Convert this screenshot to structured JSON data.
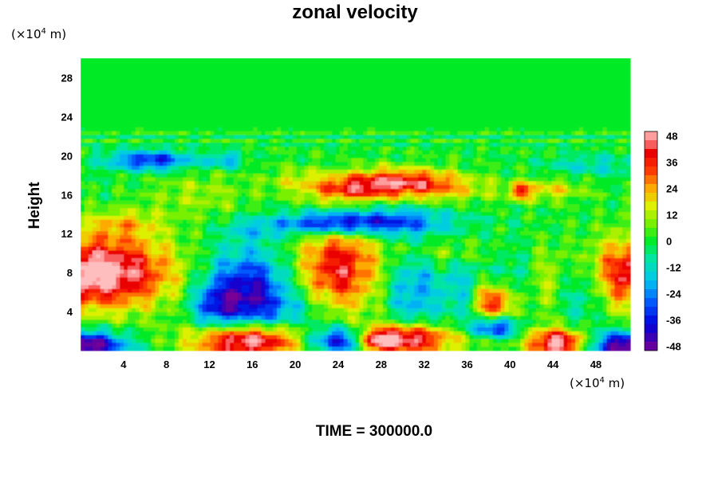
{
  "chart_data": {
    "type": "heatmap",
    "title": "zonal velocity",
    "ylabel": "Height",
    "y_scale_label": {
      "prefix": "(×10",
      "exp": "4",
      "suffix": " m)"
    },
    "x_scale_label": {
      "prefix": "(×10",
      "exp": "4",
      "suffix": " m)"
    },
    "footer": "TIME = 300000.0",
    "xlim": [
      0,
      51.2
    ],
    "ylim": [
      0,
      30
    ],
    "x_ticks": [
      "4",
      "8",
      "12",
      "16",
      "20",
      "24",
      "28",
      "32",
      "36",
      "40",
      "44",
      "48"
    ],
    "x_tick_values": [
      4,
      8,
      12,
      16,
      20,
      24,
      28,
      32,
      36,
      40,
      44,
      48
    ],
    "y_ticks": [
      "4",
      "8",
      "12",
      "16",
      "20",
      "24",
      "28"
    ],
    "y_tick_values": [
      4,
      8,
      12,
      16,
      20,
      24,
      28
    ],
    "colorbar": {
      "ticks": [
        "48",
        "36",
        "24",
        "12",
        "0",
        "-12",
        "-24",
        "-36",
        "-48"
      ],
      "tick_values": [
        48,
        36,
        24,
        12,
        0,
        -12,
        -24,
        -36,
        -48
      ],
      "range": [
        -50,
        50
      ],
      "levels": 25
    },
    "field_features": [
      {
        "x": 1.5,
        "y": 8.0,
        "sx": 5.0,
        "sy": 2.6,
        "v": 56
      },
      {
        "x": 51.5,
        "y": 8.0,
        "sx": 3.0,
        "sy": 2.6,
        "v": 42
      },
      {
        "x": 24.0,
        "y": 8.5,
        "sx": 2.8,
        "sy": 3.5,
        "v": 40
      },
      {
        "x": 38.5,
        "y": 5.0,
        "sx": 1.3,
        "sy": 1.4,
        "v": 40
      },
      {
        "x": 43.5,
        "y": 7.0,
        "sx": 1.5,
        "sy": 2.6,
        "v": 12
      },
      {
        "x": 15.5,
        "y": 6.0,
        "sx": 2.8,
        "sy": 3.0,
        "v": -42
      },
      {
        "x": 12.5,
        "y": 4.5,
        "sx": 1.5,
        "sy": 1.6,
        "v": -22
      },
      {
        "x": 31.0,
        "y": 6.0,
        "sx": 1.8,
        "sy": 3.2,
        "v": -22
      },
      {
        "x": 35.5,
        "y": 6.5,
        "sx": 1.2,
        "sy": 2.6,
        "v": -14
      },
      {
        "x": 38.5,
        "y": 2.3,
        "sx": 1.5,
        "sy": 0.8,
        "v": -40
      },
      {
        "x": 46.5,
        "y": 6.0,
        "sx": 1.5,
        "sy": 2.5,
        "v": -16
      },
      {
        "x": 40.0,
        "y": 7.5,
        "sx": 1.5,
        "sy": 2.2,
        "v": -10
      },
      {
        "x": 27.5,
        "y": 13.2,
        "sx": 4.5,
        "sy": 1.0,
        "v": -36
      },
      {
        "x": 22.5,
        "y": 13.0,
        "sx": 3.0,
        "sy": 0.8,
        "v": -28
      },
      {
        "x": 29.5,
        "y": 17.3,
        "sx": 3.8,
        "sy": 1.0,
        "v": 38
      },
      {
        "x": 25.0,
        "y": 16.5,
        "sx": 2.8,
        "sy": 0.9,
        "v": 24
      },
      {
        "x": 34.0,
        "y": 16.5,
        "sx": 3.0,
        "sy": 1.0,
        "v": 14
      },
      {
        "x": 43.5,
        "y": 16.5,
        "sx": 2.5,
        "sy": 0.8,
        "v": 18
      },
      {
        "x": 41.0,
        "y": 16.3,
        "sx": 0.6,
        "sy": 0.6,
        "v": 30
      },
      {
        "x": 6.5,
        "y": 19.5,
        "sx": 2.8,
        "sy": 0.7,
        "v": -36
      },
      {
        "x": 13.5,
        "y": 19.5,
        "sx": 1.2,
        "sy": 0.6,
        "v": -20
      },
      {
        "x": 47.5,
        "y": 19.0,
        "sx": 3.0,
        "sy": 0.8,
        "v": -12
      },
      {
        "x": 11.0,
        "y": 16.0,
        "sx": 3.5,
        "sy": 1.8,
        "v": 10
      },
      {
        "x": 4.0,
        "y": 13.0,
        "sx": 2.5,
        "sy": 1.0,
        "v": 16
      },
      {
        "x": 16.0,
        "y": 12.5,
        "sx": 2.0,
        "sy": 0.8,
        "v": -12
      },
      {
        "x": 15.5,
        "y": 1.0,
        "sx": 3.5,
        "sy": 1.3,
        "v": 58
      },
      {
        "x": 30.5,
        "y": 1.2,
        "sx": 2.5,
        "sy": 1.1,
        "v": 52
      },
      {
        "x": 44.5,
        "y": 0.8,
        "sx": 2.0,
        "sy": 1.0,
        "v": 52
      },
      {
        "x": 24.0,
        "y": 1.0,
        "sx": 2.0,
        "sy": 1.0,
        "v": -42
      },
      {
        "x": 0.5,
        "y": 0.5,
        "sx": 2.5,
        "sy": 1.0,
        "v": -55
      },
      {
        "x": 51.0,
        "y": 0.5,
        "sx": 2.5,
        "sy": 1.0,
        "v": -55
      },
      {
        "x": 36.0,
        "y": 1.0,
        "sx": 2.5,
        "sy": 1.0,
        "v": 10
      },
      {
        "x": 27.5,
        "y": 1.0,
        "sx": 1.2,
        "sy": 0.8,
        "v": 36
      },
      {
        "x": 20.0,
        "y": 4.0,
        "sx": 3.0,
        "sy": 1.5,
        "v": -12
      },
      {
        "x": 34.0,
        "y": 10.0,
        "sx": 3.0,
        "sy": 1.0,
        "v": 12
      },
      {
        "x": 20.0,
        "y": 17.5,
        "sx": 2.0,
        "sy": 1.0,
        "v": 10
      }
    ]
  }
}
